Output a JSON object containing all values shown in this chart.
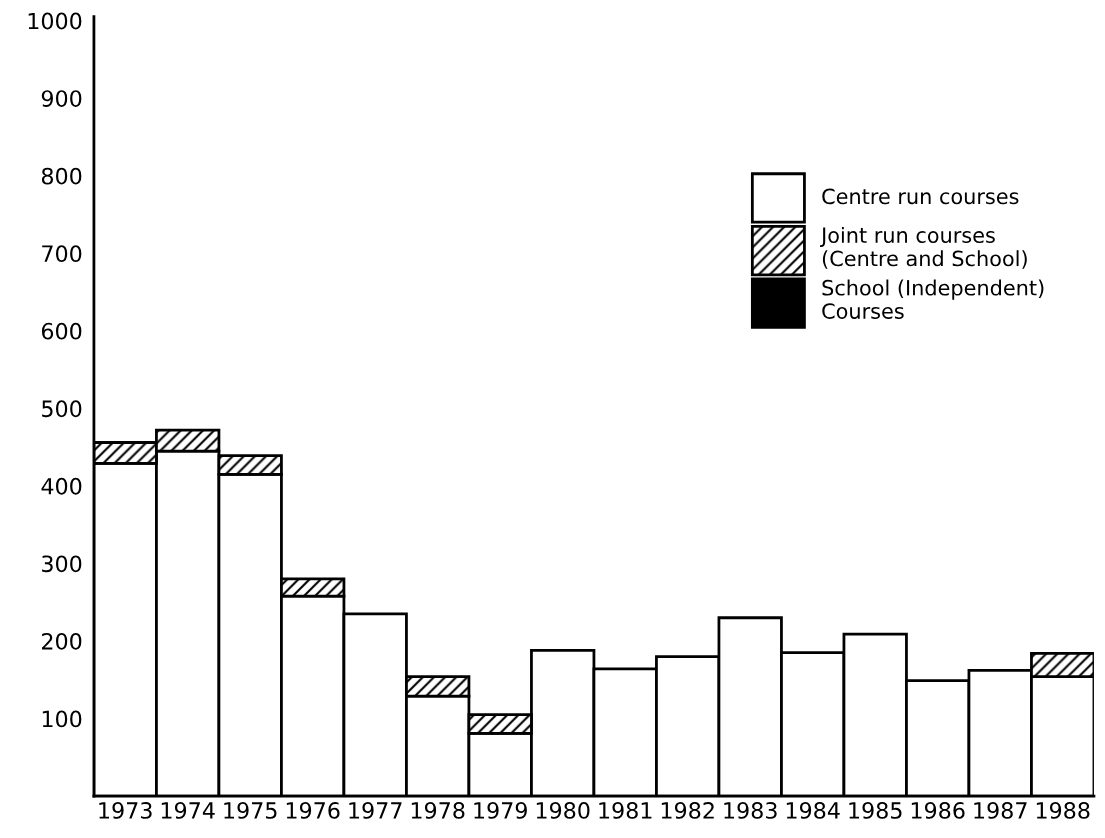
{
  "chart_data": {
    "type": "bar",
    "stacked": true,
    "categories": [
      "1973",
      "1974",
      "1975",
      "1976",
      "1977",
      "1978",
      "1979",
      "1980",
      "1981",
      "1982",
      "1983",
      "1984",
      "1985",
      "1986",
      "1987",
      "1988"
    ],
    "series": [
      {
        "name": "Centre run courses",
        "color": "#ffffff",
        "values": [
          429,
          445,
          415,
          258,
          235,
          129,
          81,
          188,
          164,
          180,
          230,
          185,
          209,
          149,
          162,
          154
        ]
      },
      {
        "name": "Joint run courses\n(Centre and School)",
        "color": "#000000",
        "values": [
          27,
          27,
          24,
          22,
          null,
          25,
          24,
          null,
          null,
          null,
          null,
          null,
          null,
          null,
          null,
          30
        ]
      },
      {
        "name": "School (Independent)\nCourses",
        "color": "#000000",
        "values": [
          null,
          null,
          null,
          null,
          null,
          null,
          null,
          null,
          null,
          null,
          null,
          null,
          null,
          null,
          null,
          null
        ]
      }
    ],
    "ylim": [
      0,
      1005
    ],
    "yticks": [
      100,
      200,
      300,
      400,
      500,
      600,
      700,
      800,
      900,
      1000
    ],
    "grid": false,
    "legend": "right"
  }
}
